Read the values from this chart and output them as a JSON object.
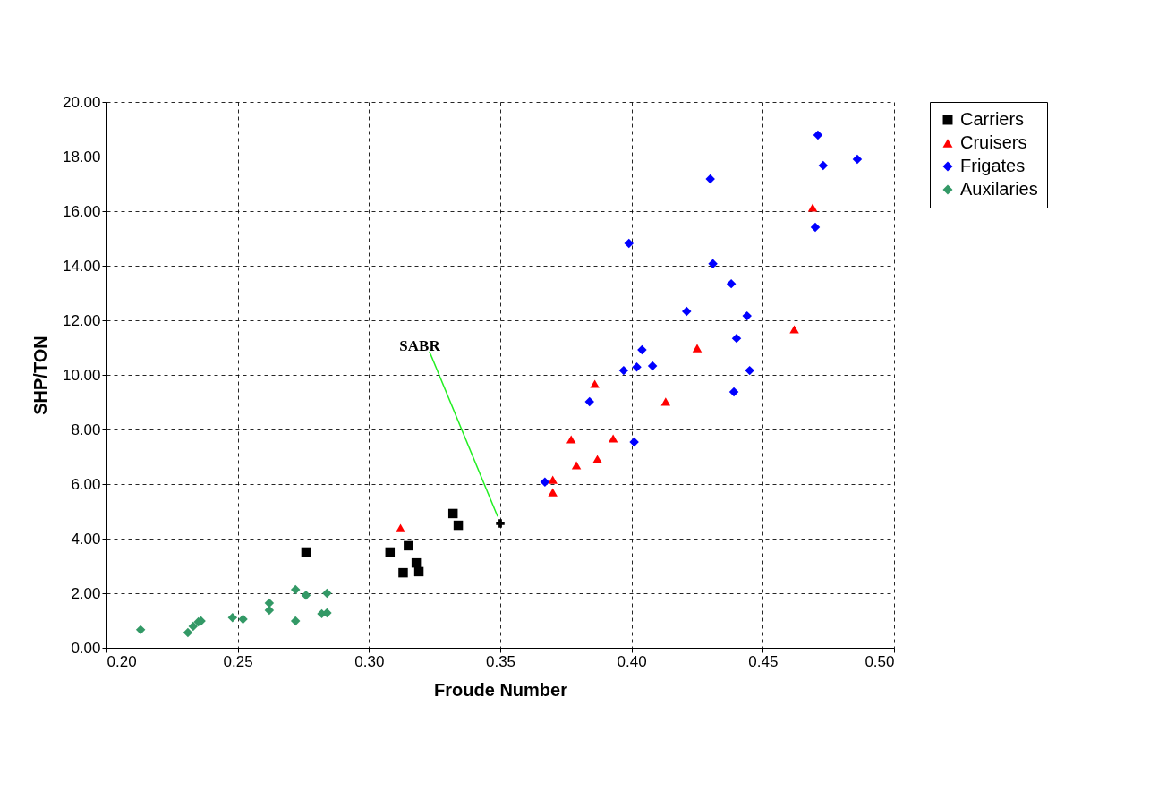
{
  "chart_data": {
    "type": "scatter",
    "xlabel": "Froude Number",
    "ylabel": "SHP/TON",
    "xlim": [
      0.2,
      0.5
    ],
    "ylim": [
      0,
      20
    ],
    "xticks": [
      {
        "value": 0.2,
        "label": "0.20"
      },
      {
        "value": 0.25,
        "label": "0.25"
      },
      {
        "value": 0.3,
        "label": "0.30"
      },
      {
        "value": 0.35,
        "label": "0.35"
      },
      {
        "value": 0.4,
        "label": "0.40"
      },
      {
        "value": 0.45,
        "label": "0.45"
      },
      {
        "value": 0.5,
        "label": "0.50"
      }
    ],
    "yticks": [
      {
        "value": 0,
        "label": "0.00"
      },
      {
        "value": 2,
        "label": "2.00"
      },
      {
        "value": 4,
        "label": "4.00"
      },
      {
        "value": 6,
        "label": "6.00"
      },
      {
        "value": 8,
        "label": "8.00"
      },
      {
        "value": 10,
        "label": "10.00"
      },
      {
        "value": 12,
        "label": "12.00"
      },
      {
        "value": 14,
        "label": "14.00"
      },
      {
        "value": 16,
        "label": "16.00"
      },
      {
        "value": 18,
        "label": "18.00"
      },
      {
        "value": 20,
        "label": "20.00"
      }
    ],
    "grid": true,
    "line_style": "dashed",
    "legend": "right",
    "annotations": [
      {
        "text": "SABR",
        "x": 0.35,
        "y": 4.56
      }
    ],
    "series": [
      {
        "name": "Carriers",
        "color": "#000000",
        "marker": "square",
        "x": [
          0.276,
          0.308,
          0.315,
          0.318,
          0.319,
          0.313,
          0.332,
          0.334
        ],
        "values": [
          3.51,
          3.51,
          3.74,
          3.11,
          2.79,
          2.75,
          4.92,
          4.49
        ]
      },
      {
        "name": "Cruisers",
        "color": "#ff0000",
        "marker": "triangle",
        "x": [
          0.312,
          0.37,
          0.37,
          0.377,
          0.379,
          0.386,
          0.387,
          0.393,
          0.413,
          0.425,
          0.462,
          0.469
        ],
        "values": [
          4.39,
          6.16,
          5.7,
          7.64,
          6.69,
          9.67,
          6.92,
          7.67,
          9.02,
          10.98,
          11.67,
          16.13
        ]
      },
      {
        "name": "Frigates",
        "color": "#0000ff",
        "marker": "diamond",
        "x": [
          0.367,
          0.384,
          0.397,
          0.399,
          0.401,
          0.402,
          0.404,
          0.408,
          0.421,
          0.43,
          0.431,
          0.438,
          0.439,
          0.44,
          0.444,
          0.445,
          0.47,
          0.471,
          0.473,
          0.486
        ],
        "values": [
          6.07,
          9.02,
          10.16,
          14.82,
          7.54,
          10.29,
          10.92,
          10.33,
          12.33,
          17.18,
          14.07,
          13.34,
          9.38,
          11.34,
          12.16,
          10.16,
          15.41,
          18.79,
          17.67,
          17.9
        ]
      },
      {
        "name": "Auxilaries",
        "color": "#339966",
        "marker": "diamond",
        "x": [
          0.213,
          0.231,
          0.233,
          0.235,
          0.236,
          0.248,
          0.252,
          0.262,
          0.262,
          0.272,
          0.272,
          0.276,
          0.282,
          0.284,
          0.284
        ],
        "values": [
          0.66,
          0.56,
          0.79,
          0.95,
          0.98,
          1.11,
          1.05,
          1.64,
          1.38,
          2.13,
          0.98,
          1.93,
          1.25,
          1.28,
          2.0
        ]
      }
    ]
  }
}
